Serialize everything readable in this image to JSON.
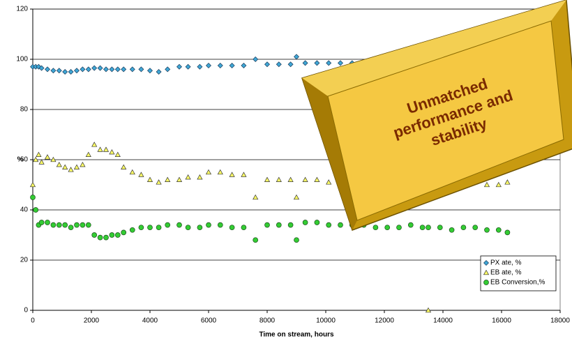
{
  "chart_data": {
    "type": "scatter",
    "xlabel": "Time on stream, hours",
    "ylabel": "%",
    "annotation": [
      "Unmatched",
      "performance and",
      "stability"
    ],
    "xlim": [
      0,
      18000
    ],
    "xticks": [
      0,
      2000,
      4000,
      6000,
      8000,
      10000,
      12000,
      14000,
      16000,
      18000
    ],
    "ylim": [
      0,
      120
    ],
    "yticks": [
      0,
      20,
      40,
      60,
      80,
      100,
      120
    ],
    "grid": true,
    "legend": "lower right",
    "x": [
      0,
      100,
      200,
      300,
      500,
      700,
      900,
      1100,
      1300,
      1500,
      1700,
      1900,
      2100,
      2300,
      2500,
      2700,
      2900,
      3100,
      3400,
      3700,
      4000,
      4300,
      4600,
      5000,
      5300,
      5700,
      6000,
      6400,
      6800,
      7200,
      7600,
      8000,
      8400,
      8800,
      9000,
      9300,
      9700,
      10100,
      10500,
      10900,
      11300,
      11700,
      12100,
      12500,
      12900,
      13300,
      13500,
      13900,
      14300,
      14700,
      15100,
      15500,
      15900,
      16200
    ],
    "series": [
      {
        "name": "PX ate, %",
        "color": "#3fa7d6",
        "marker": "diamond",
        "values": [
          97,
          97,
          97,
          96.5,
          96,
          95.5,
          95.5,
          95,
          95,
          95.5,
          96,
          96,
          96.5,
          96.5,
          96,
          96,
          96,
          96,
          96,
          96,
          95.5,
          95,
          96,
          97,
          97,
          97,
          97.5,
          97.5,
          97.5,
          97.5,
          100,
          98,
          98,
          98,
          101,
          98.5,
          98.5,
          98.5,
          98.5,
          98.5,
          98.5,
          98.5,
          98.5,
          98.5,
          98.5,
          98.5,
          98.5,
          98,
          98,
          98,
          98,
          98,
          98,
          98
        ]
      },
      {
        "name": "EB ate, %",
        "color": "#ffff66",
        "marker": "triangle",
        "values": [
          50,
          60,
          62,
          59,
          61,
          60,
          58,
          57,
          56,
          57,
          58,
          62,
          66,
          64,
          64,
          63,
          62,
          57,
          55,
          54,
          52,
          51,
          52,
          52,
          53,
          53,
          55,
          55,
          54,
          54,
          45,
          52,
          52,
          52,
          45,
          52,
          52,
          51,
          50,
          50,
          51,
          49,
          51,
          53,
          52,
          51,
          0,
          52,
          53,
          51,
          51,
          50,
          50,
          51
        ]
      },
      {
        "name": "EB Conversion,%",
        "color": "#33cc33",
        "marker": "circle",
        "values": [
          45,
          40,
          34,
          35,
          35,
          34,
          34,
          34,
          33,
          34,
          34,
          34,
          30,
          29,
          29,
          30,
          30,
          31,
          32,
          33,
          33,
          33,
          34,
          34,
          33,
          33,
          34,
          34,
          33,
          33,
          28,
          34,
          34,
          34,
          28,
          35,
          35,
          34,
          34,
          34,
          34,
          33,
          33,
          33,
          34,
          33,
          33,
          33,
          32,
          33,
          33,
          32,
          32,
          31
        ]
      }
    ]
  }
}
